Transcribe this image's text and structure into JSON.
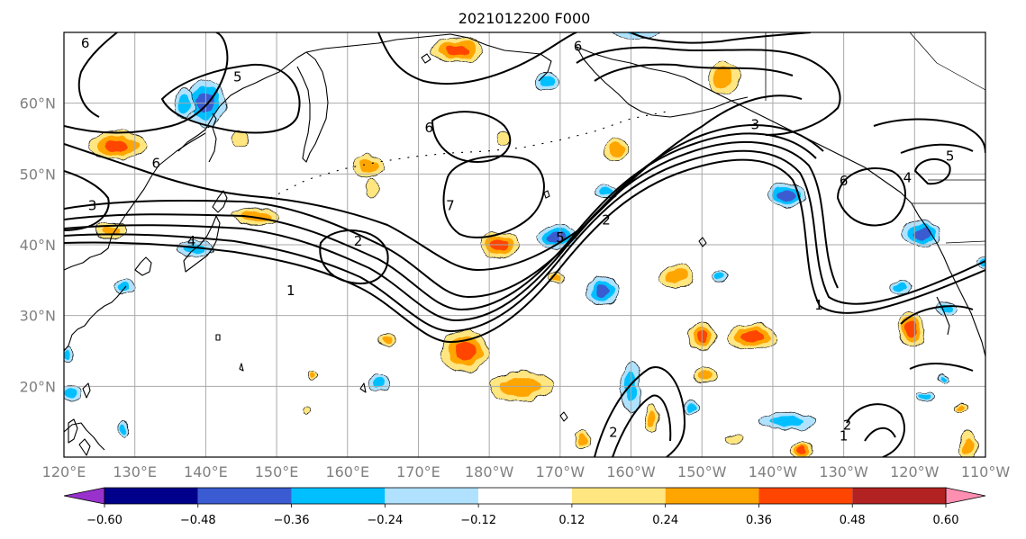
{
  "title": "2021012200 F000",
  "map": {
    "lon_ticks": [
      "120°E",
      "130°E",
      "140°E",
      "150°E",
      "160°E",
      "170°E",
      "180°W",
      "170°W",
      "160°W",
      "150°W",
      "140°W",
      "130°W",
      "120°W",
      "110°W"
    ],
    "lat_ticks": [
      "20°N",
      "30°N",
      "40°N",
      "50°N",
      "60°N"
    ],
    "lon_range": [
      120,
      250
    ],
    "lat_range": [
      10,
      70
    ],
    "grid": true,
    "contour_color": "#000000",
    "contour_labels": [
      {
        "text": "6",
        "lon": 123,
        "lat": 68.5
      },
      {
        "text": "5",
        "lon": 144.5,
        "lat": 63.7
      },
      {
        "text": "6",
        "lon": 133,
        "lat": 51.5
      },
      {
        "text": "3",
        "lon": 124,
        "lat": 45.5
      },
      {
        "text": "4",
        "lon": 138,
        "lat": 40.5
      },
      {
        "text": "1",
        "lon": 152,
        "lat": 33.5
      },
      {
        "text": "2",
        "lon": 161.5,
        "lat": 40.5
      },
      {
        "text": "6",
        "lon": 171.5,
        "lat": 56.5
      },
      {
        "text": "7",
        "lon": 174.5,
        "lat": 45.5
      },
      {
        "text": "5",
        "lon": 190,
        "lat": 41
      },
      {
        "text": "2",
        "lon": 196.5,
        "lat": 43.5
      },
      {
        "text": "6",
        "lon": 192.5,
        "lat": 68
      },
      {
        "text": "3",
        "lon": 217.5,
        "lat": 57
      },
      {
        "text": "6",
        "lon": 230,
        "lat": 49
      },
      {
        "text": "5",
        "lon": 245,
        "lat": 52.5
      },
      {
        "text": "4",
        "lon": 239,
        "lat": 49.5
      },
      {
        "text": "1",
        "lon": 226.5,
        "lat": 31.5
      },
      {
        "text": "2",
        "lon": 197.5,
        "lat": 13.5
      },
      {
        "text": "2",
        "lon": 230.5,
        "lat": 14.5
      },
      {
        "text": "1",
        "lon": 230,
        "lat": 13
      }
    ],
    "anomaly_levels": [
      -0.6,
      -0.48,
      -0.36,
      -0.24,
      -0.12,
      0.12,
      0.24,
      0.36,
      0.48,
      0.6
    ],
    "anomaly_colors": [
      "#9932cc",
      "#00008b",
      "#3a5bd1",
      "#00bfff",
      "#b0e2ff",
      "#ffffff",
      "#ffe680",
      "#ffa500",
      "#ff4500",
      "#b22222",
      "#ff8fb0"
    ],
    "blobs": [
      {
        "lon": 140,
        "lat": 60,
        "rx": 2.8,
        "ry": 3.2,
        "v": -0.42
      },
      {
        "lon": 127.5,
        "lat": 54,
        "rx": 4,
        "ry": 2,
        "v": 0.4
      },
      {
        "lon": 137,
        "lat": 60,
        "rx": 1.5,
        "ry": 2,
        "v": -0.3
      },
      {
        "lon": 145,
        "lat": 55,
        "rx": 1.2,
        "ry": 1,
        "v": 0.2
      },
      {
        "lon": 163,
        "lat": 51,
        "rx": 2.2,
        "ry": 1.6,
        "v": 0.3
      },
      {
        "lon": 175.5,
        "lat": 67.5,
        "rx": 3.5,
        "ry": 1.8,
        "v": 0.42
      },
      {
        "lon": 188,
        "lat": 63,
        "rx": 1.7,
        "ry": 1.3,
        "v": -0.3
      },
      {
        "lon": 201,
        "lat": 71,
        "rx": 4,
        "ry": 2,
        "v": -0.35
      },
      {
        "lon": 213,
        "lat": 63.5,
        "rx": 2.3,
        "ry": 2.3,
        "v": 0.3
      },
      {
        "lon": 182,
        "lat": 55,
        "rx": 1,
        "ry": 0.8,
        "v": 0.2
      },
      {
        "lon": 198,
        "lat": 53.5,
        "rx": 1.6,
        "ry": 1.5,
        "v": 0.3
      },
      {
        "lon": 147,
        "lat": 44,
        "rx": 3.5,
        "ry": 1.2,
        "v": 0.3
      },
      {
        "lon": 126.5,
        "lat": 42,
        "rx": 2.2,
        "ry": 1.2,
        "v": 0.25
      },
      {
        "lon": 138.5,
        "lat": 39.5,
        "rx": 2.5,
        "ry": 1.2,
        "v": -0.34
      },
      {
        "lon": 181.5,
        "lat": 40,
        "rx": 2.8,
        "ry": 1.8,
        "v": 0.38
      },
      {
        "lon": 189.5,
        "lat": 41,
        "rx": 2.8,
        "ry": 1.8,
        "v": -0.42
      },
      {
        "lon": 196,
        "lat": 33.5,
        "rx": 2.2,
        "ry": 2.2,
        "v": -0.45
      },
      {
        "lon": 206.5,
        "lat": 35.5,
        "rx": 2.5,
        "ry": 1.6,
        "v": 0.3
      },
      {
        "lon": 189.5,
        "lat": 35.5,
        "rx": 1,
        "ry": 0.8,
        "v": 0.3
      },
      {
        "lon": 212.5,
        "lat": 35.5,
        "rx": 1,
        "ry": 0.8,
        "v": -0.3
      },
      {
        "lon": 222,
        "lat": 47,
        "rx": 2.7,
        "ry": 1.7,
        "v": -0.4
      },
      {
        "lon": 241,
        "lat": 41.5,
        "rx": 2.8,
        "ry": 1.8,
        "v": -0.45
      },
      {
        "lon": 238,
        "lat": 34,
        "rx": 1.5,
        "ry": 1,
        "v": -0.3
      },
      {
        "lon": 239.5,
        "lat": 28,
        "rx": 1.8,
        "ry": 2.5,
        "v": 0.4
      },
      {
        "lon": 250,
        "lat": 37.5,
        "rx": 1.2,
        "ry": 0.8,
        "v": -0.3
      },
      {
        "lon": 176.5,
        "lat": 25,
        "rx": 3.3,
        "ry": 3,
        "v": 0.45
      },
      {
        "lon": 165.5,
        "lat": 26.5,
        "rx": 1.3,
        "ry": 1,
        "v": 0.3
      },
      {
        "lon": 155,
        "lat": 21.5,
        "rx": 0.7,
        "ry": 0.8,
        "v": 0.3
      },
      {
        "lon": 164.5,
        "lat": 20.5,
        "rx": 1.6,
        "ry": 1.3,
        "v": -0.32
      },
      {
        "lon": 184.5,
        "lat": 20,
        "rx": 4.5,
        "ry": 2,
        "v": 0.3
      },
      {
        "lon": 193,
        "lat": 12.5,
        "rx": 1.2,
        "ry": 1.2,
        "v": 0.35
      },
      {
        "lon": 200,
        "lat": 20,
        "rx": 1.5,
        "ry": 3.5,
        "v": -0.3
      },
      {
        "lon": 203,
        "lat": 15.5,
        "rx": 1,
        "ry": 2,
        "v": 0.3
      },
      {
        "lon": 210,
        "lat": 27,
        "rx": 2,
        "ry": 2,
        "v": 0.42
      },
      {
        "lon": 210.5,
        "lat": 21.5,
        "rx": 1.6,
        "ry": 1.2,
        "v": 0.3
      },
      {
        "lon": 217,
        "lat": 27,
        "rx": 3.5,
        "ry": 1.8,
        "v": 0.42
      },
      {
        "lon": 222,
        "lat": 15,
        "rx": 4,
        "ry": 1.3,
        "v": -0.32
      },
      {
        "lon": 224,
        "lat": 11,
        "rx": 1.5,
        "ry": 1.2,
        "v": 0.38
      },
      {
        "lon": 214.5,
        "lat": 12.5,
        "rx": 1,
        "ry": 0.6,
        "v": 0.2
      },
      {
        "lon": 208.5,
        "lat": 17,
        "rx": 1,
        "ry": 0.8,
        "v": -0.28
      },
      {
        "lon": 247.5,
        "lat": 11.5,
        "rx": 1.3,
        "ry": 2,
        "v": 0.3
      },
      {
        "lon": 121,
        "lat": 19,
        "rx": 1.5,
        "ry": 1.2,
        "v": -0.3
      },
      {
        "lon": 128.5,
        "lat": 34,
        "rx": 1.5,
        "ry": 0.9,
        "v": -0.28
      },
      {
        "lon": 120.5,
        "lat": 24.5,
        "rx": 0.8,
        "ry": 1,
        "v": -0.25
      },
      {
        "lon": 128.5,
        "lat": 14,
        "rx": 0.7,
        "ry": 1.2,
        "v": -0.25
      },
      {
        "lon": 154.5,
        "lat": 16.5,
        "rx": 0.6,
        "ry": 0.5,
        "v": 0.2
      },
      {
        "lon": 163.5,
        "lat": 48,
        "rx": 1,
        "ry": 1.2,
        "v": 0.2
      },
      {
        "lon": 244,
        "lat": 21,
        "rx": 0.8,
        "ry": 0.6,
        "v": -0.25
      },
      {
        "lon": 244.5,
        "lat": 31,
        "rx": 1.5,
        "ry": 1,
        "v": -0.3
      },
      {
        "lon": 241.5,
        "lat": 18.5,
        "rx": 1.2,
        "ry": 0.7,
        "v": -0.25
      },
      {
        "lon": 246.5,
        "lat": 17,
        "rx": 0.8,
        "ry": 0.5,
        "v": 0.25
      },
      {
        "lon": 196.5,
        "lat": 47.5,
        "rx": 1.5,
        "ry": 1,
        "v": -0.25
      }
    ]
  },
  "colorbar": {
    "tick_labels": [
      "−0.60",
      "−0.48",
      "−0.36",
      "−0.24",
      "−0.12",
      "0.12",
      "0.24",
      "0.36",
      "0.48",
      "0.60"
    ]
  }
}
